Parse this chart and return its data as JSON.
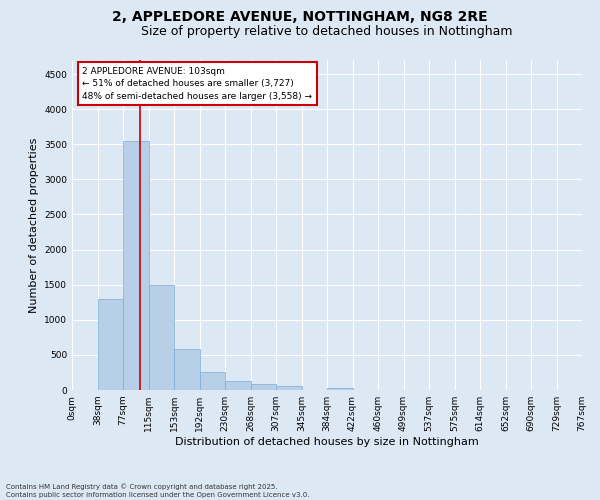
{
  "title_line1": "2, APPLEDORE AVENUE, NOTTINGHAM, NG8 2RE",
  "title_line2": "Size of property relative to detached houses in Nottingham",
  "xlabel": "Distribution of detached houses by size in Nottingham",
  "ylabel": "Number of detached properties",
  "bar_values": [
    0,
    1290,
    3540,
    1490,
    590,
    260,
    135,
    80,
    50,
    0,
    35,
    0,
    0,
    0,
    0,
    0,
    0,
    0,
    0,
    0
  ],
  "bin_labels": [
    "0sqm",
    "38sqm",
    "77sqm",
    "115sqm",
    "153sqm",
    "192sqm",
    "230sqm",
    "268sqm",
    "307sqm",
    "345sqm",
    "384sqm",
    "422sqm",
    "460sqm",
    "499sqm",
    "537sqm",
    "575sqm",
    "614sqm",
    "652sqm",
    "690sqm",
    "729sqm",
    "767sqm"
  ],
  "bar_color": "#b8cfe8",
  "bar_edge_color": "#7aadd4",
  "bar_width": 1.0,
  "vline_x": 2.68,
  "vline_color": "#cc0000",
  "annotation_text": "2 APPLEDORE AVENUE: 103sqm\n← 51% of detached houses are smaller (3,727)\n48% of semi-detached houses are larger (3,558) →",
  "annotation_box_color": "#ffffff",
  "annotation_edge_color": "#cc0000",
  "ylim": [
    0,
    4700
  ],
  "yticks": [
    0,
    500,
    1000,
    1500,
    2000,
    2500,
    3000,
    3500,
    4000,
    4500
  ],
  "background_color": "#dde8f5",
  "grid_color": "#ffffff",
  "footer_line1": "Contains HM Land Registry data © Crown copyright and database right 2025.",
  "footer_line2": "Contains public sector information licensed under the Open Government Licence v3.0.",
  "title_fontsize": 10,
  "subtitle_fontsize": 9,
  "axis_label_fontsize": 8,
  "tick_fontsize": 6.5,
  "annotation_fontsize": 6.5
}
